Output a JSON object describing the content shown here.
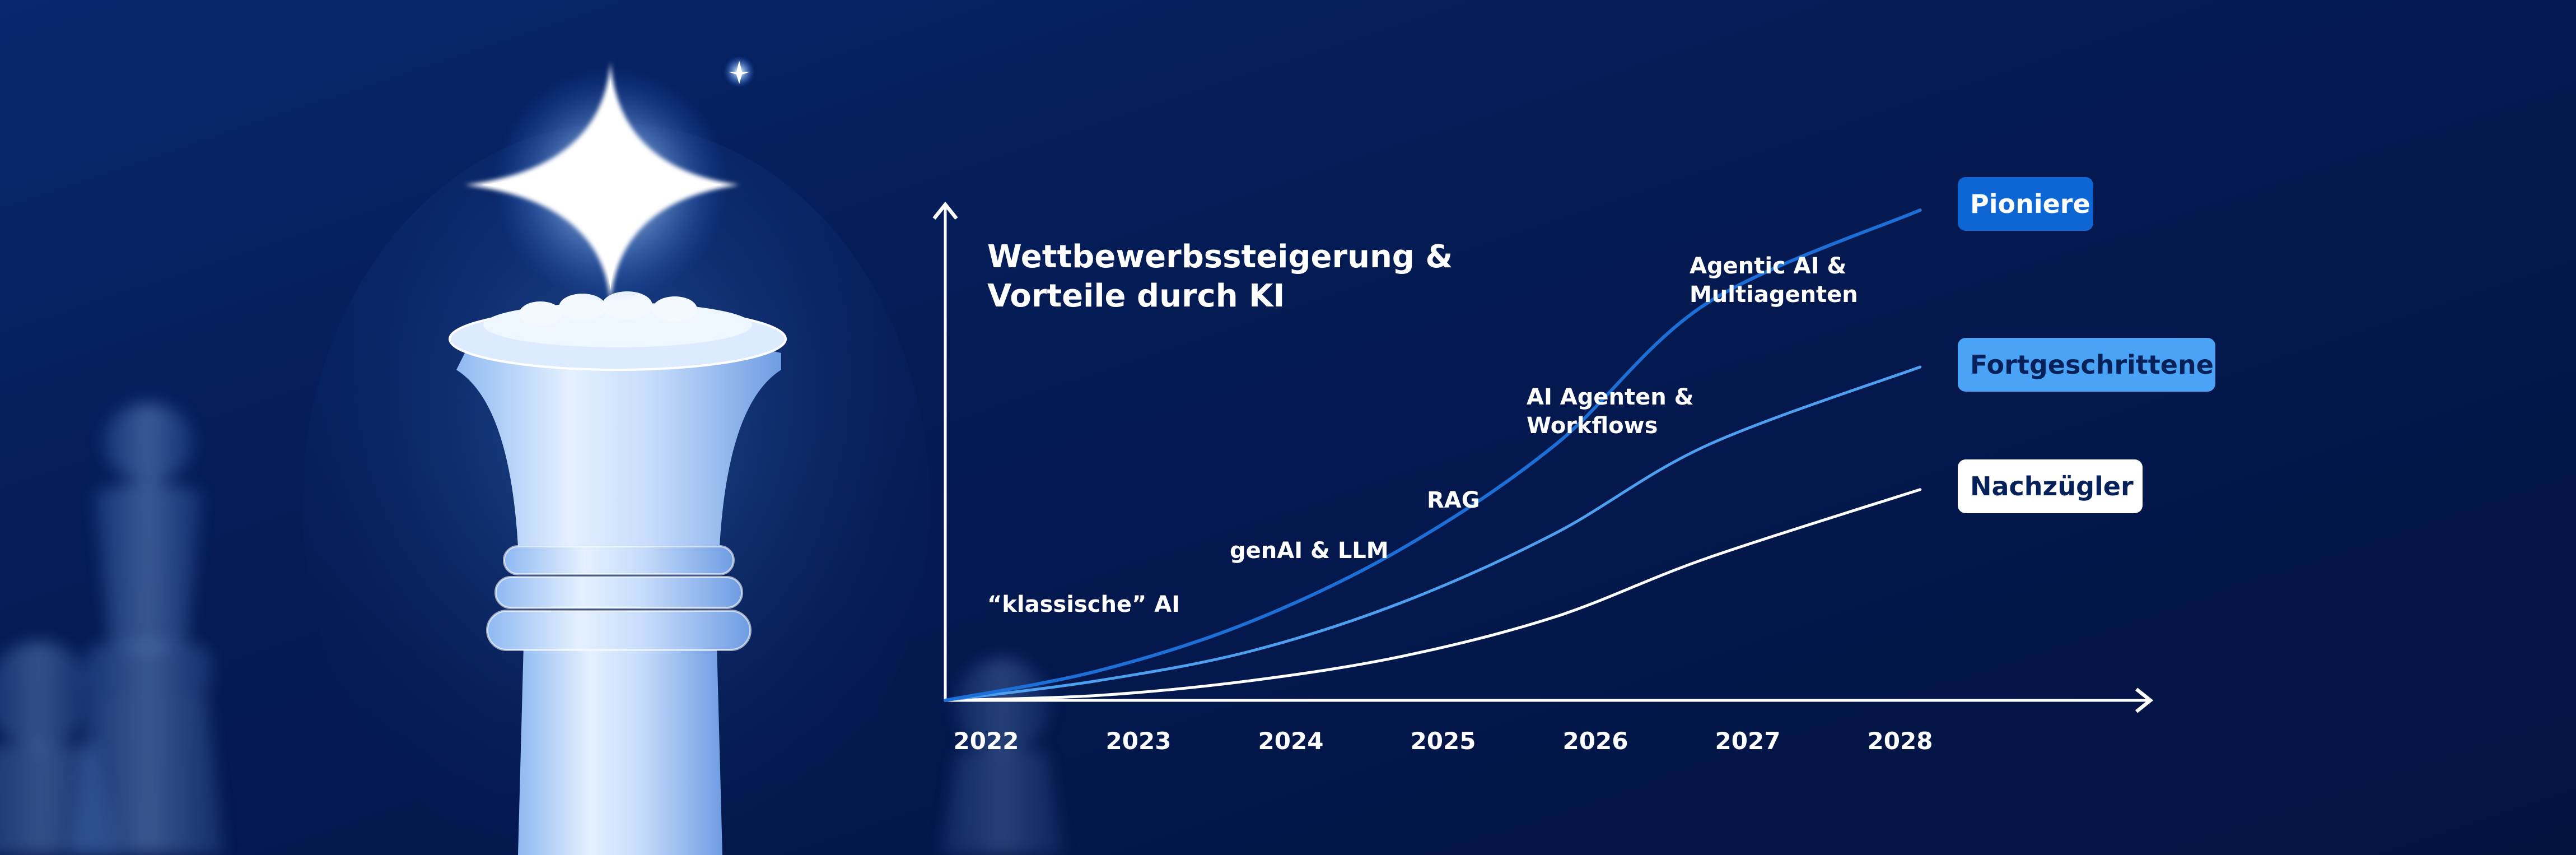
{
  "chart_data": {
    "type": "line",
    "title": "Wettbewerbssteigerung & Vorteile durch KI",
    "title_lines": [
      "Wettbewerbssteigerung &",
      "Vorteile durch KI"
    ],
    "x": [
      "2022",
      "2023",
      "2024",
      "2025",
      "2026",
      "2027",
      "2028"
    ],
    "xlabel": "",
    "ylabel": "",
    "grid": false,
    "legend": "right (labels at line ends)",
    "series": [
      {
        "name": "Pioniere",
        "color": "#1b6fd6",
        "label_bg": "#0e66d4",
        "label_fg": "#ffffff",
        "x": [
          2022,
          2023,
          2024,
          2025,
          2026,
          2027,
          2028.4
        ],
        "values": [
          0,
          6,
          16,
          31,
          52,
          81,
          100
        ]
      },
      {
        "name": "Fortgeschrittene",
        "color": "#4d9ff0",
        "label_bg": "#4aa3f5",
        "label_fg": "#06205a",
        "x": [
          2022,
          2023,
          2024,
          2025,
          2026,
          2027,
          2028.4
        ],
        "values": [
          0,
          4,
          10,
          20,
          34,
          52,
          68
        ]
      },
      {
        "name": "Nachzügler",
        "color": "#ffffff",
        "label_bg": "#ffffff",
        "label_fg": "#06205a",
        "x": [
          2022,
          2023,
          2024,
          2025,
          2026,
          2027,
          2028.4
        ],
        "values": [
          0,
          1,
          4,
          9,
          17,
          29,
          43
        ]
      }
    ],
    "annotations": [
      {
        "lines": [
          "“klassische” AI"
        ]
      },
      {
        "lines": [
          "genAI & LLM"
        ]
      },
      {
        "lines": [
          "RAG"
        ]
      },
      {
        "lines": [
          "AI Agenten &",
          "Workflows"
        ]
      },
      {
        "lines": [
          "Agentic AI &",
          "Multiagenten"
        ]
      }
    ]
  },
  "colors": {
    "background": "#03174a",
    "axis": "#ffffff",
    "text": "#ffffff"
  },
  "decor": {
    "icon": "chess-queen-icon"
  }
}
